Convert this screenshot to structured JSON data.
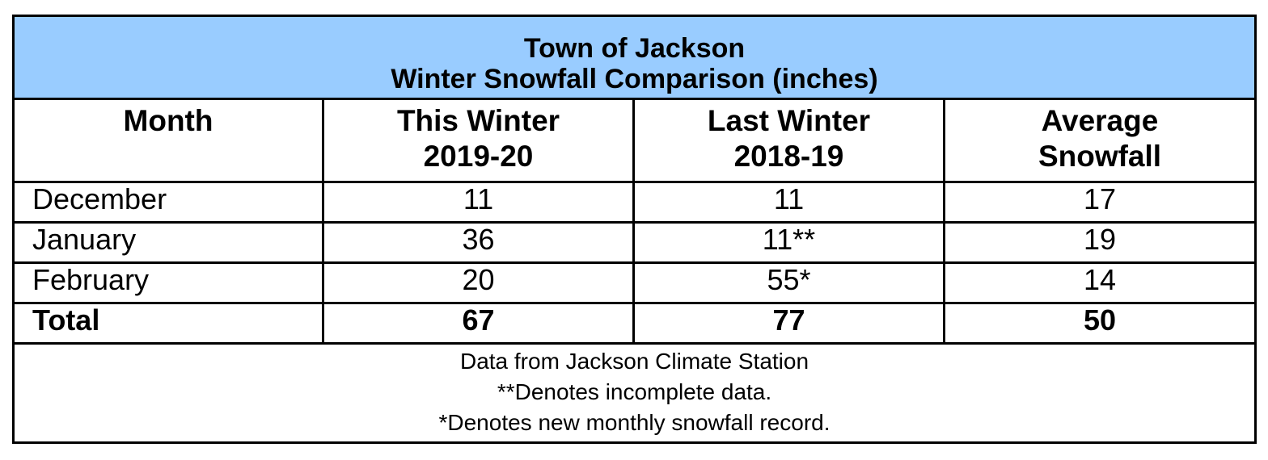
{
  "chart_data": {
    "type": "table",
    "title": "Town of Jackson",
    "subtitle": "Winter Snowfall Comparison (inches)",
    "columns": [
      {
        "line1": "Month",
        "line2": ""
      },
      {
        "line1": "This Winter",
        "line2": "2019-20"
      },
      {
        "line1": "Last Winter",
        "line2": "2018-19"
      },
      {
        "line1": "Average",
        "line2": "Snowfall"
      }
    ],
    "rows": [
      [
        "December",
        "11",
        "11",
        "17"
      ],
      [
        "January",
        "36",
        "11**",
        "19"
      ],
      [
        "February",
        "20",
        "55*",
        "14"
      ],
      [
        "Total",
        "67",
        "77",
        "50"
      ]
    ],
    "notes": [
      "Data from Jackson Climate Station",
      "**Denotes incomplete data.",
      "*Denotes new monthly snowfall record."
    ],
    "header_color": "#99ccff"
  }
}
